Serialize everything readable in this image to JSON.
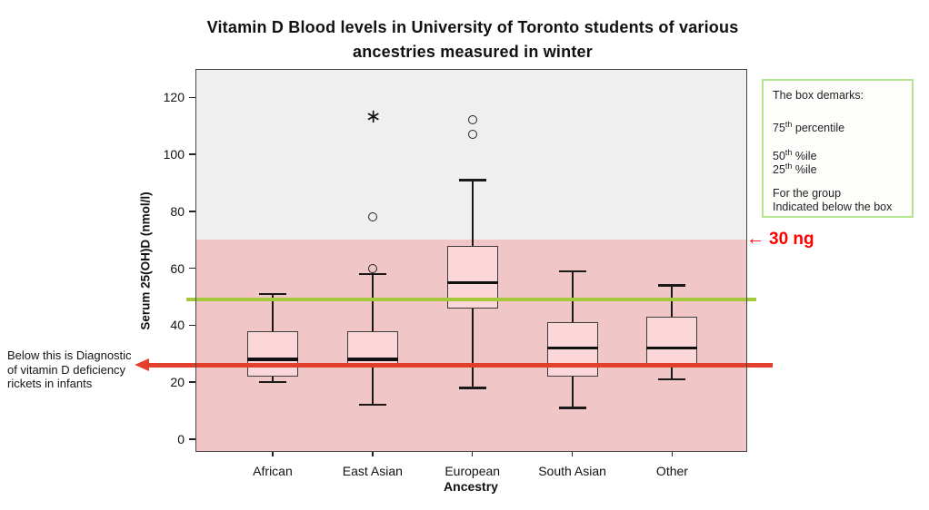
{
  "title": {
    "lines": [
      "Vitamin D Blood levels in University of Toronto students of various",
      "ancestries measured in winter"
    ]
  },
  "chart_data": {
    "type": "boxplot",
    "title": "Vitamin D Blood levels in University of Toronto students of various ancestries measured in winter",
    "xlabel": "Ancestry",
    "ylabel": "Serum 25(OH)D (nmol/l)",
    "categories": [
      "African",
      "East Asian",
      "European",
      "South Asian",
      "Other"
    ],
    "y_ticks": [
      0,
      20,
      40,
      60,
      80,
      100,
      120
    ],
    "ylim": [
      -4.5,
      130
    ],
    "grid": false,
    "boxes": [
      {
        "category": "African",
        "whisker_low": 20,
        "q1": 22,
        "median": 28,
        "q3": 38,
        "whisker_high": 51,
        "outliers": [],
        "extremes": []
      },
      {
        "category": "East Asian",
        "whisker_low": 12,
        "q1": 25,
        "median": 28,
        "q3": 38,
        "whisker_high": 58,
        "outliers": [
          60,
          78
        ],
        "extremes": [
          113
        ]
      },
      {
        "category": "European",
        "whisker_low": 18,
        "q1": 46,
        "median": 55,
        "q3": 68,
        "whisker_high": 91,
        "outliers": [
          107,
          112
        ],
        "extremes": []
      },
      {
        "category": "South Asian",
        "whisker_low": 11,
        "q1": 22,
        "median": 32,
        "q3": 41,
        "whisker_high": 59,
        "outliers": [],
        "extremes": []
      },
      {
        "category": "Other",
        "whisker_low": 21,
        "q1": 25,
        "median": 32,
        "q3": 43,
        "whisker_high": 54,
        "outliers": [],
        "extremes": []
      }
    ],
    "reference_lines": [
      {
        "name": "sufficiency-line",
        "value": 49,
        "color": "#a6c93c",
        "style": "solid"
      },
      {
        "name": "rickets-threshold-arrow",
        "value": 26,
        "color": "#e2402c",
        "style": "arrow-left"
      }
    ],
    "shaded_region": {
      "from_value": -4.5,
      "to_value": 70,
      "color": "#f1c6c7"
    },
    "upper_background": "#efefef",
    "marker_glyphs": {
      "outlier": "circle",
      "extreme": "∗"
    }
  },
  "annotations": {
    "left_note": {
      "lines": [
        "Below this is Diagnostic",
        "of vitamin D deficiency",
        "rickets in infants"
      ]
    },
    "ng_label": {
      "arrow": "←",
      "text": "30 ng",
      "color": "#ff0000"
    }
  },
  "legend": {
    "lines": [
      {
        "text": "The box demarks:"
      },
      {
        "num": "75",
        "sup": "th",
        "rest": " percentile"
      },
      {
        "num": "50",
        "sup": "th",
        "rest": " %ile"
      },
      {
        "num": "25",
        "sup": "th",
        "rest": " %ile"
      },
      {
        "text": "For the group"
      },
      {
        "text": "Indicated below the box"
      }
    ],
    "border_color": "#b2e58e",
    "background": "#fdfefb"
  },
  "colors": {
    "box_fill": "#fcd7da",
    "box_border": "#3c3c3c",
    "median": "#111111",
    "whisker": "#1a1a1a",
    "plot_border": "#474747"
  }
}
